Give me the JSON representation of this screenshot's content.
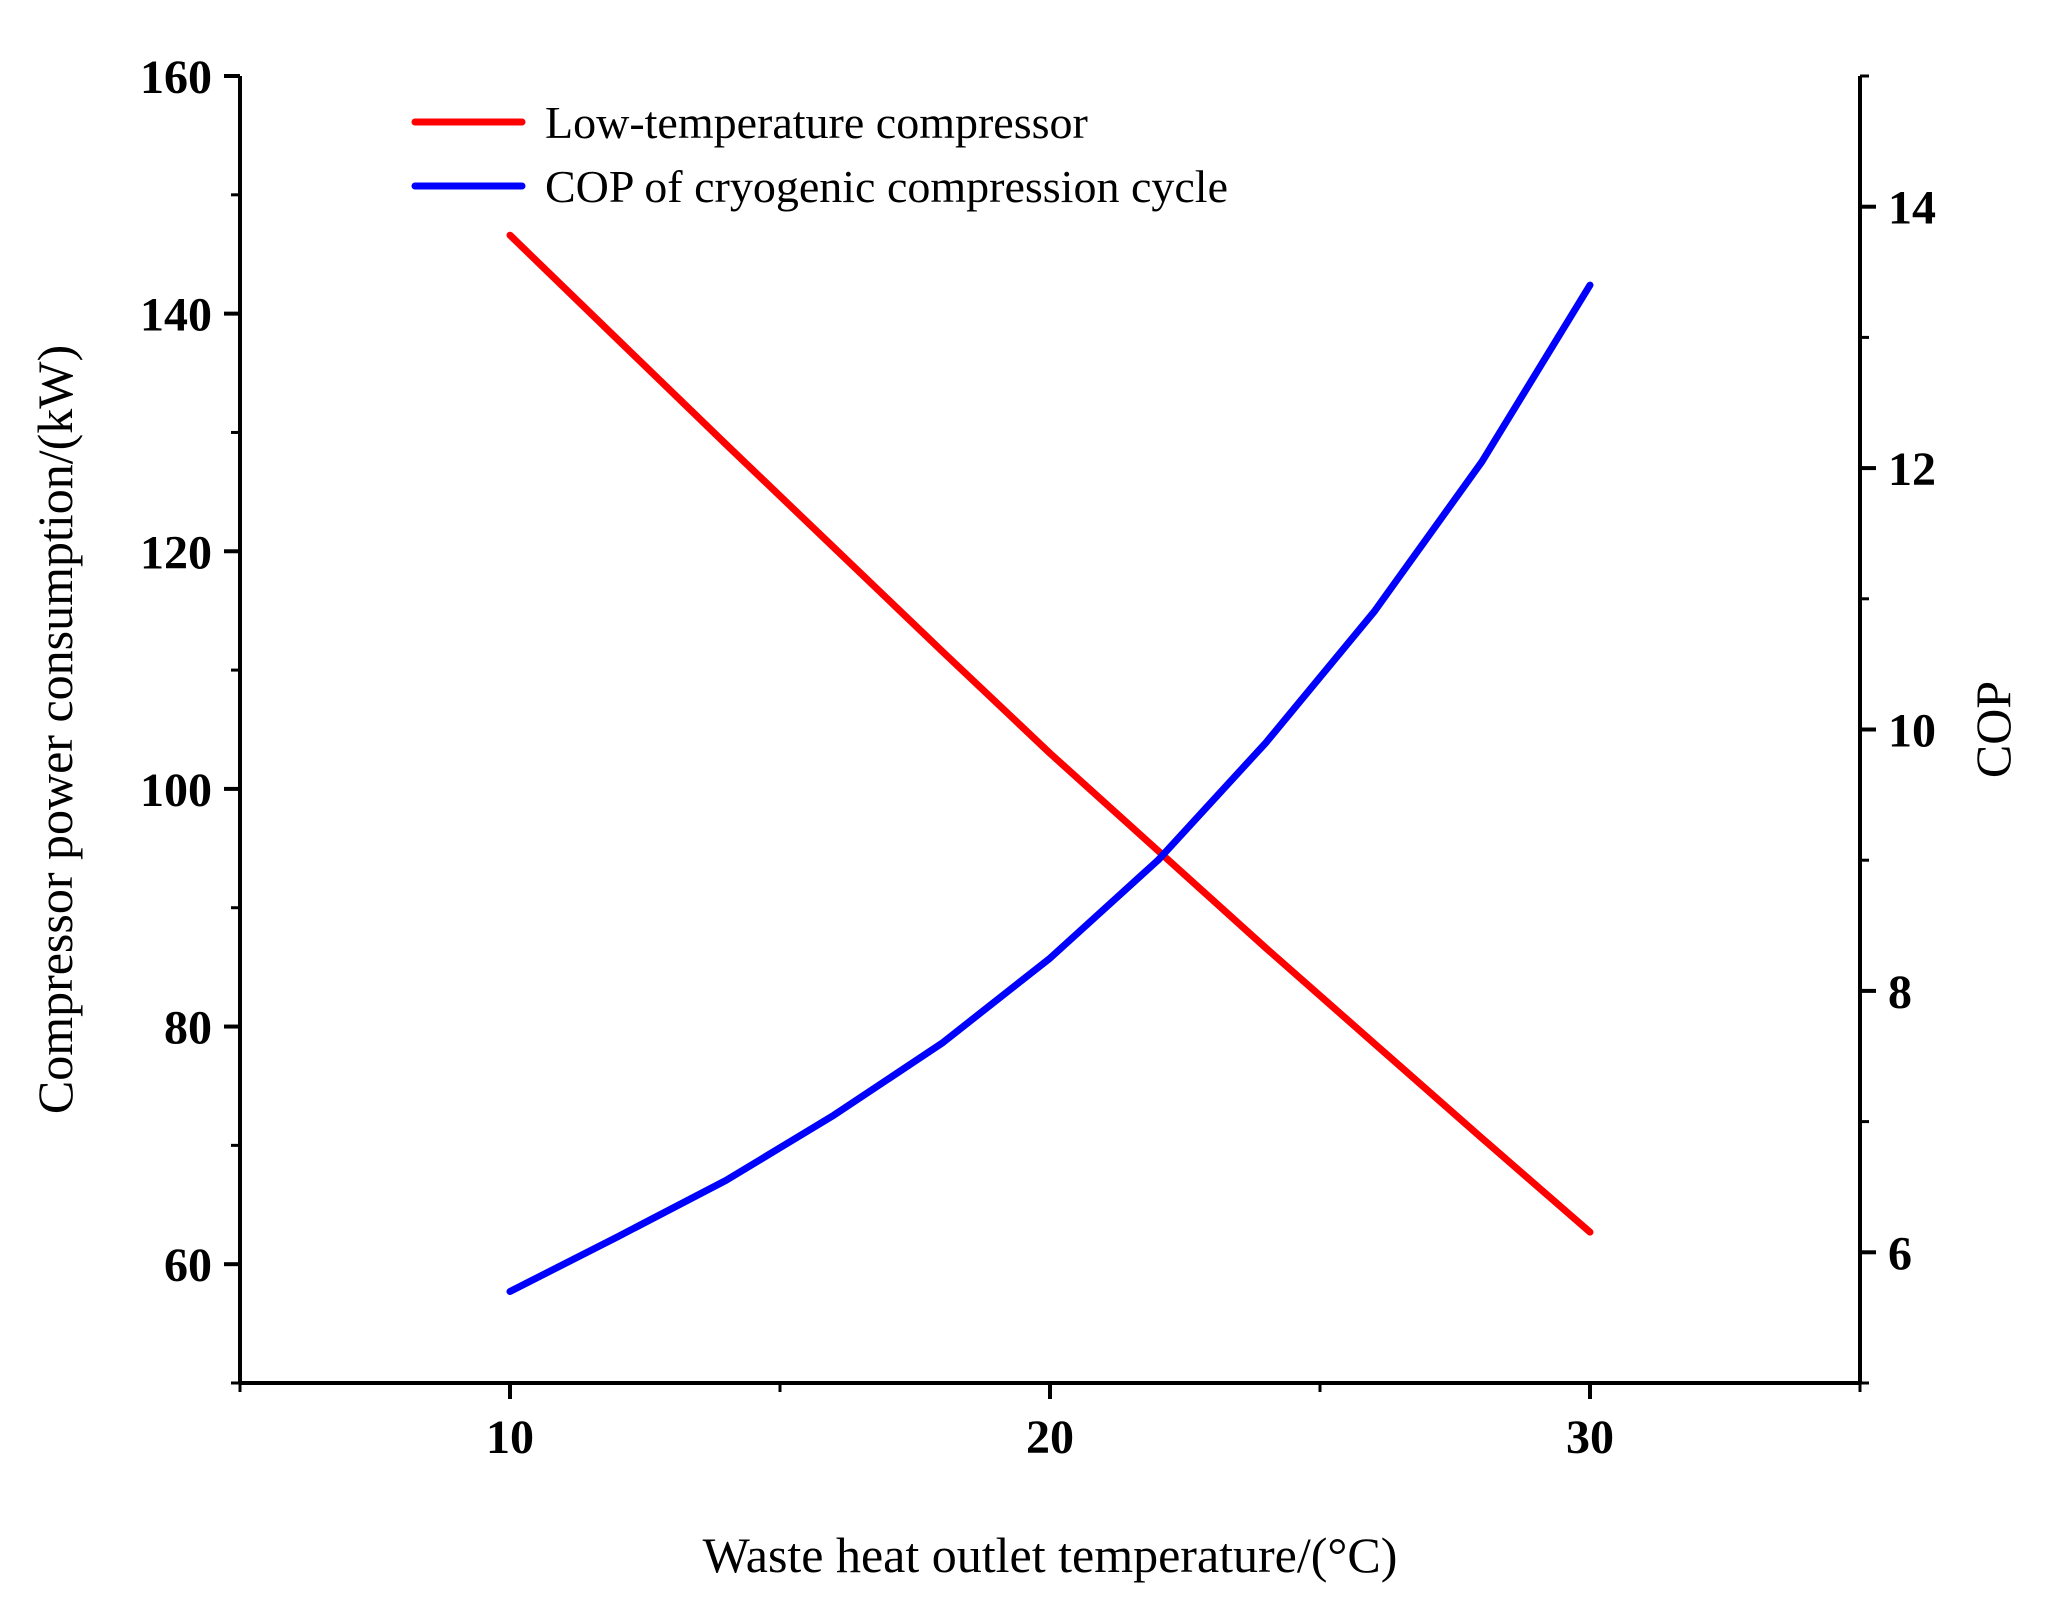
{
  "chart_data": {
    "type": "line",
    "title": "",
    "xlabel": "Waste heat outlet temperature/(°C)",
    "ylabel": "Compressor power consumption/(kW)",
    "y2label": "COP",
    "xlim": [
      5,
      35
    ],
    "ylim": [
      50,
      160
    ],
    "y2lim": [
      5,
      15
    ],
    "xticks": [
      "10",
      "20",
      "30"
    ],
    "yticks": [
      "60",
      "80",
      "100",
      "120",
      "140",
      "160"
    ],
    "y2ticks": [
      "6",
      "8",
      "10",
      "12",
      "14"
    ],
    "legend_position": "top-left",
    "grid": false,
    "series": [
      {
        "name": "Low-temperature compressor",
        "axis": "left",
        "color": "#ff0000",
        "x": [
          10,
          12,
          14,
          16,
          18,
          20,
          22,
          24,
          26,
          28,
          30
        ],
        "y": [
          146.6,
          137.8,
          129.0,
          120.3,
          111.6,
          103.0,
          94.8,
          86.6,
          78.6,
          70.6,
          62.7
        ]
      },
      {
        "name": "COP of cryogenic compression cycle",
        "axis": "right",
        "color": "#0000ff",
        "x": [
          10,
          12,
          14,
          16,
          18,
          20,
          22,
          24,
          26,
          28,
          30
        ],
        "y": [
          5.7,
          6.12,
          6.55,
          7.05,
          7.6,
          8.25,
          9.0,
          9.9,
          10.9,
          12.05,
          13.4
        ]
      }
    ]
  }
}
